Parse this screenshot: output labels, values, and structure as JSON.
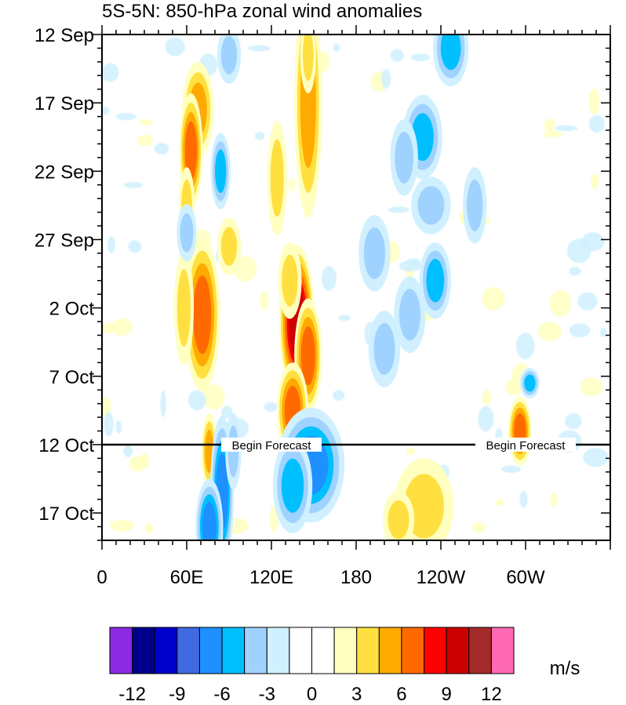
{
  "chart_data": {
    "type": "heatmap",
    "title": "5S-5N: 850-hPa zonal wind anomalies",
    "x_axis": {
      "ticks": [
        {
          "lon": 0,
          "label": "0"
        },
        {
          "lon": 60,
          "label": "60E"
        },
        {
          "lon": 120,
          "label": "120E"
        },
        {
          "lon": 180,
          "label": "180"
        },
        {
          "lon": 240,
          "label": "120W"
        },
        {
          "lon": 300,
          "label": "60W"
        }
      ],
      "range": [
        0,
        360
      ]
    },
    "y_axis": {
      "ticks": [
        {
          "day": 0,
          "label": "12 Sep"
        },
        {
          "day": 5,
          "label": "17 Sep"
        },
        {
          "day": 10,
          "label": "22 Sep"
        },
        {
          "day": 15,
          "label": "27 Sep"
        },
        {
          "day": 20,
          "label": "2 Oct"
        },
        {
          "day": 25,
          "label": "7 Oct"
        },
        {
          "day": 30,
          "label": "12 Oct"
        },
        {
          "day": 35,
          "label": "17 Oct"
        }
      ],
      "range": [
        0,
        37
      ],
      "direction": "down"
    },
    "forecast_line": {
      "day": 30,
      "labels": [
        "Begin Forecast",
        "Begin Forecast"
      ],
      "label_lons": [
        120,
        300
      ]
    },
    "colorbar": {
      "unit": "m/s",
      "levels": [
        -12,
        -10.5,
        -9,
        -7.5,
        -6,
        -4.5,
        -3,
        -1.5,
        0,
        1.5,
        3,
        4.5,
        6,
        7.5,
        9,
        10.5,
        12
      ],
      "labels": [
        "-12",
        "-9",
        "-6",
        "-3",
        "0",
        "3",
        "6",
        "9",
        "12"
      ],
      "colors": [
        "#8a2be2",
        "#00008b",
        "#0000cd",
        "#4169e1",
        "#1e90ff",
        "#00bfff",
        "#a0d2ff",
        "#d0f0ff",
        "#ffffff",
        "#ffffff",
        "#ffffc0",
        "#ffe040",
        "#ffaa00",
        "#ff6a00",
        "#ff0000",
        "#cc0000",
        "#a52a2a",
        "#ff69b4"
      ]
    },
    "features": [
      {
        "lon": 68,
        "day": 5.5,
        "dlon": 8,
        "dday": 2.5,
        "value": 5.5
      },
      {
        "lon": 63,
        "day": 8.5,
        "dlon": 6,
        "dday": 3,
        "value": 6
      },
      {
        "lon": 84,
        "day": 10,
        "dlon": 5,
        "dday": 2,
        "value": -5
      },
      {
        "lon": 71,
        "day": 20.5,
        "dlon": 9,
        "dday": 4,
        "value": 7
      },
      {
        "lon": 58,
        "day": 20,
        "dlon": 5,
        "dday": 3,
        "value": 3
      },
      {
        "lon": 138,
        "day": 21,
        "dlon": 9,
        "dday": 4,
        "value": 9.5
      },
      {
        "lon": 146,
        "day": 23.5,
        "dlon": 7,
        "dday": 3,
        "value": 6
      },
      {
        "lon": 133,
        "day": 18,
        "dlon": 6,
        "dday": 2,
        "value": 4
      },
      {
        "lon": 146,
        "day": 5,
        "dlon": 7,
        "dday": 6,
        "value": 5
      },
      {
        "lon": 146,
        "day": 1.5,
        "dlon": 4,
        "dday": 2,
        "value": 3
      },
      {
        "lon": 124,
        "day": 10.5,
        "dlon": 5,
        "dday": 3,
        "value": 3
      },
      {
        "lon": 135,
        "day": 27.5,
        "dlon": 8,
        "dday": 2.5,
        "value": 6.5
      },
      {
        "lon": 90,
        "day": 15.5,
        "dlon": 6,
        "dday": 1.5,
        "value": 4
      },
      {
        "lon": 76,
        "day": 30.5,
        "dlon": 4,
        "dday": 2,
        "value": 5
      },
      {
        "lon": 60,
        "day": 12.5,
        "dlon": 4,
        "dday": 2,
        "value": 3
      },
      {
        "lon": 85,
        "day": 33.5,
        "dlon": 6,
        "dday": 4,
        "value": -6
      },
      {
        "lon": 76,
        "day": 36,
        "dlon": 7,
        "dday": 2.5,
        "value": -7
      },
      {
        "lon": 93,
        "day": 30.5,
        "dlon": 4,
        "dday": 2,
        "value": -4
      },
      {
        "lon": 148,
        "day": 31.5,
        "dlon": 17,
        "dday": 3,
        "value": -6
      },
      {
        "lon": 135,
        "day": 33,
        "dlon": 10,
        "dday": 2.5,
        "value": -5
      },
      {
        "lon": 227,
        "day": 7.5,
        "dlon": 10,
        "dday": 2.2,
        "value": -5
      },
      {
        "lon": 214,
        "day": 9,
        "dlon": 7,
        "dday": 2,
        "value": -4
      },
      {
        "lon": 236,
        "day": 18,
        "dlon": 8,
        "dday": 2,
        "value": -5
      },
      {
        "lon": 218,
        "day": 20.5,
        "dlon": 8,
        "dday": 2,
        "value": -3.5
      },
      {
        "lon": 200,
        "day": 23,
        "dlon": 8,
        "dday": 2,
        "value": -4
      },
      {
        "lon": 193,
        "day": 16,
        "dlon": 8,
        "dday": 2,
        "value": -4
      },
      {
        "lon": 247,
        "day": 1,
        "dlon": 9,
        "dday": 2,
        "value": -5
      },
      {
        "lon": 233,
        "day": 12.5,
        "dlon": 10,
        "dday": 1.5,
        "value": -3.5
      },
      {
        "lon": 296,
        "day": 29,
        "dlon": 6,
        "dday": 1.8,
        "value": 6
      },
      {
        "lon": 303,
        "day": 25.5,
        "dlon": 5,
        "dday": 0.8,
        "value": -5
      },
      {
        "lon": 228,
        "day": 34.5,
        "dlon": 15,
        "dday": 2.5,
        "value": 4
      },
      {
        "lon": 210,
        "day": 35.5,
        "dlon": 8,
        "dday": 1.5,
        "value": 3
      },
      {
        "lon": 264,
        "day": 12.5,
        "dlon": 6,
        "dday": 2,
        "value": -3.5
      },
      {
        "lon": 90,
        "day": 1.5,
        "dlon": 6,
        "dday": 1.5,
        "value": -3.5
      },
      {
        "lon": 60,
        "day": 14.5,
        "dlon": 5,
        "dday": 1.5,
        "value": -3.5
      }
    ]
  }
}
